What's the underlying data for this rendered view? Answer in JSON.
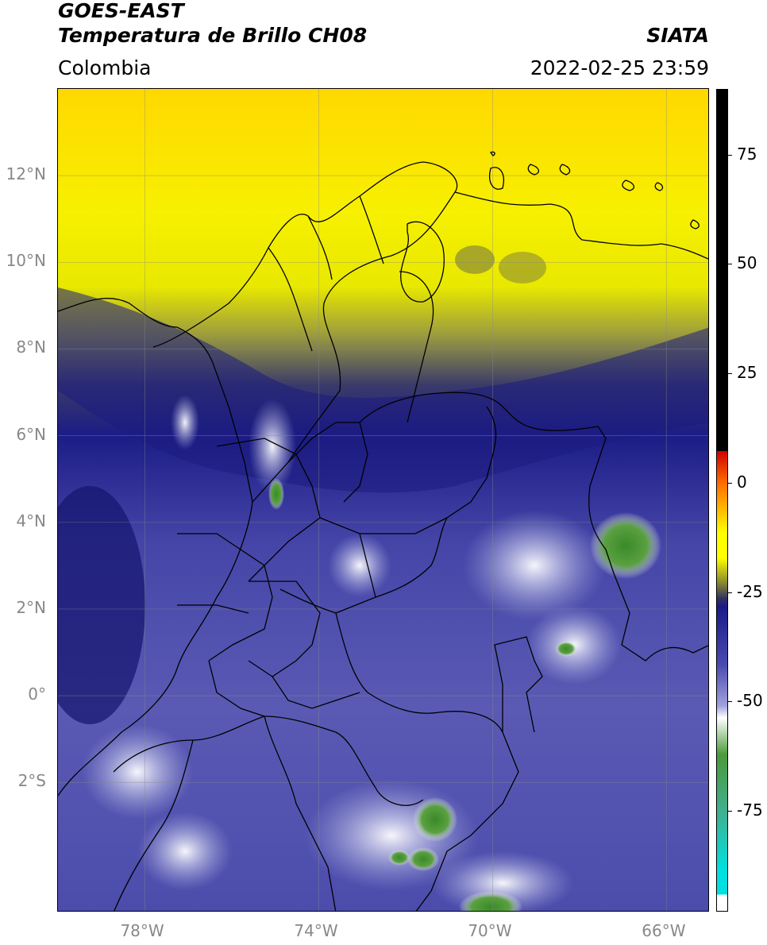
{
  "header": {
    "satellite": "GOES-EAST",
    "product": "Temperatura de Brillo CH08",
    "region": "Colombia",
    "agency": "SIATA",
    "timestamp": "2022-02-25 23:59"
  },
  "map": {
    "lat_ticks": [
      "12°N",
      "10°N",
      "8°N",
      "6°N",
      "4°N",
      "2°N",
      "0°",
      "2°S"
    ],
    "lon_ticks": [
      "78°W",
      "74°W",
      "70°W",
      "66°W"
    ],
    "extent": {
      "lon_min": -80,
      "lon_max": -65,
      "lat_min": -5,
      "lat_max": 14
    }
  },
  "colorbar": {
    "ticks": [
      "75",
      "50",
      "25",
      "0",
      "-25",
      "-50",
      "-75"
    ],
    "values": [
      75,
      50,
      25,
      0,
      -25,
      -50,
      -75
    ],
    "colors": [
      "#000000",
      "#ff2000",
      "#ffff00",
      "#303060",
      "#4a4ab0",
      "#ffffff",
      "#3a8a2a",
      "#00e0e0"
    ]
  }
}
